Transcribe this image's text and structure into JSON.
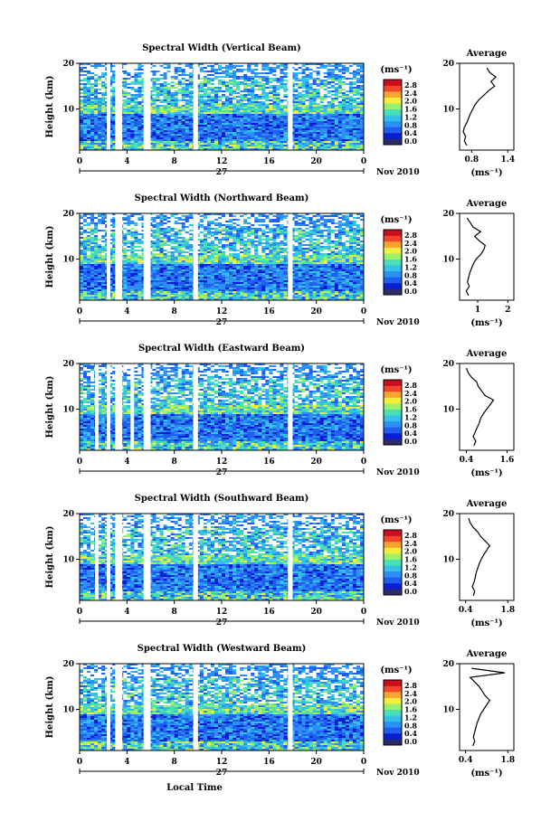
{
  "figure": {
    "date_label": "Nov 2010",
    "xlabel": "Local Time",
    "ylabel": "Height (km)",
    "colorbar_unit": "(ms⁻¹)",
    "colorbar_ticks": [
      "2.8",
      "2.4",
      "2.0",
      "1.6",
      "1.2",
      "0.8",
      "0.4",
      "0.0"
    ],
    "average_title": "Average",
    "average_xlabel": "(ms⁻¹)",
    "day_label": "27",
    "colormap": [
      "#2b2b6b",
      "#0a1fd1",
      "#1f5ff0",
      "#2d8ff5",
      "#34c0e8",
      "#49e0b6",
      "#9ef06a",
      "#f3ee3c",
      "#f9a42e",
      "#f2452a",
      "#c90e22"
    ]
  },
  "chart_data": [
    {
      "type": "heatmap",
      "title": "Spectral Width (Vertical Beam)",
      "x_ticks": [
        "0",
        "4",
        "8",
        "12",
        "16",
        "20",
        "0"
      ],
      "xlim": [
        0,
        24
      ],
      "y_ticks": [
        "20",
        "10"
      ],
      "ylim": [
        1,
        20
      ],
      "color_range": [
        0.0,
        3.0
      ],
      "data_gaps_hours": [
        [
          2.3,
          2.6
        ],
        [
          3.0,
          3.6
        ],
        [
          5.4,
          6.0
        ],
        [
          9.6,
          10.0
        ],
        [
          17.6,
          18.0
        ]
      ],
      "average_profile": {
        "title": "Average",
        "x_ticks": [
          "0.8",
          "1.4"
        ],
        "xlim": [
          0.6,
          1.5
        ],
        "height_km": [
          2,
          3,
          4,
          5,
          6,
          7,
          8,
          9,
          10,
          11,
          12,
          13,
          14,
          15,
          16,
          17,
          18,
          19
        ],
        "value": [
          0.72,
          0.68,
          0.7,
          0.66,
          0.68,
          0.72,
          0.75,
          0.78,
          0.82,
          0.86,
          0.92,
          1.0,
          1.08,
          1.18,
          1.12,
          1.2,
          1.1,
          1.05
        ]
      }
    },
    {
      "type": "heatmap",
      "title": "Spectral Width (Northward Beam)",
      "x_ticks": [
        "0",
        "4",
        "8",
        "12",
        "16",
        "20",
        "0"
      ],
      "xlim": [
        0,
        24
      ],
      "y_ticks": [
        "20",
        "10"
      ],
      "ylim": [
        1,
        20
      ],
      "color_range": [
        0.0,
        3.0
      ],
      "data_gaps_hours": [
        [
          2.3,
          2.6
        ],
        [
          3.0,
          3.6
        ],
        [
          5.4,
          6.0
        ],
        [
          9.6,
          10.0
        ],
        [
          17.6,
          18.0
        ]
      ],
      "average_profile": {
        "title": "Average",
        "x_ticks": [
          "1",
          "2"
        ],
        "xlim": [
          0.4,
          2.2
        ],
        "height_km": [
          2,
          3,
          4,
          5,
          6,
          7,
          8,
          9,
          10,
          11,
          12,
          13,
          14,
          15,
          16,
          17,
          18,
          19
        ],
        "value": [
          0.7,
          0.62,
          0.72,
          0.66,
          0.7,
          0.74,
          0.8,
          0.86,
          0.95,
          1.1,
          1.2,
          1.25,
          1.05,
          0.9,
          1.1,
          0.85,
          0.75,
          0.65
        ]
      }
    },
    {
      "type": "heatmap",
      "title": "Spectral Width (Eastward Beam)",
      "x_ticks": [
        "0",
        "4",
        "8",
        "12",
        "16",
        "20",
        "0"
      ],
      "xlim": [
        0,
        24
      ],
      "y_ticks": [
        "20",
        "10"
      ],
      "ylim": [
        1,
        20
      ],
      "color_range": [
        0.0,
        3.0
      ],
      "data_gaps_hours": [
        [
          1.3,
          1.6
        ],
        [
          2.3,
          2.6
        ],
        [
          3.0,
          3.6
        ],
        [
          4.3,
          4.6
        ],
        [
          5.4,
          6.0
        ],
        [
          9.6,
          10.0
        ],
        [
          17.6,
          18.0
        ]
      ],
      "average_profile": {
        "title": "Average",
        "x_ticks": [
          "0.4",
          "1.6"
        ],
        "xlim": [
          0.2,
          1.8
        ],
        "height_km": [
          2,
          3,
          4,
          5,
          6,
          7,
          8,
          9,
          10,
          11,
          12,
          13,
          14,
          15,
          16,
          17,
          18,
          19
        ],
        "value": [
          0.62,
          0.68,
          0.6,
          0.66,
          0.72,
          0.78,
          0.82,
          0.9,
          1.0,
          1.1,
          1.2,
          0.95,
          0.85,
          0.75,
          0.7,
          0.55,
          0.45,
          0.4
        ]
      }
    },
    {
      "type": "heatmap",
      "title": "Spectral Width (Southward Beam)",
      "x_ticks": [
        "0",
        "4",
        "8",
        "12",
        "16",
        "20",
        "0"
      ],
      "xlim": [
        0,
        24
      ],
      "y_ticks": [
        "20",
        "10"
      ],
      "ylim": [
        1,
        20
      ],
      "color_range": [
        0.0,
        3.0
      ],
      "data_gaps_hours": [
        [
          1.3,
          1.6
        ],
        [
          2.3,
          2.6
        ],
        [
          3.0,
          3.6
        ],
        [
          5.4,
          6.0
        ],
        [
          9.6,
          10.0
        ],
        [
          17.6,
          18.0
        ]
      ],
      "average_profile": {
        "title": "Average",
        "x_ticks": [
          "0.4",
          "1.8"
        ],
        "xlim": [
          0.2,
          2.0
        ],
        "height_km": [
          2,
          3,
          4,
          5,
          6,
          7,
          8,
          9,
          10,
          11,
          12,
          13,
          14,
          15,
          16,
          17,
          18,
          19
        ],
        "value": [
          0.66,
          0.7,
          0.62,
          0.68,
          0.72,
          0.75,
          0.8,
          0.85,
          0.92,
          1.0,
          1.1,
          1.2,
          1.05,
          0.9,
          0.8,
          0.65,
          0.55,
          0.5
        ]
      }
    },
    {
      "type": "heatmap",
      "title": "Spectral Width (Westward Beam)",
      "x_ticks": [
        "0",
        "4",
        "8",
        "12",
        "16",
        "20",
        "0"
      ],
      "xlim": [
        0,
        24
      ],
      "y_ticks": [
        "20",
        "10"
      ],
      "ylim": [
        1,
        20
      ],
      "color_range": [
        0.0,
        3.0
      ],
      "data_gaps_hours": [
        [
          2.3,
          2.6
        ],
        [
          3.0,
          3.6
        ],
        [
          5.4,
          6.0
        ],
        [
          9.6,
          10.0
        ],
        [
          17.6,
          18.0
        ]
      ],
      "average_profile": {
        "title": "Average",
        "x_ticks": [
          "0.4",
          "1.8"
        ],
        "xlim": [
          0.2,
          2.0
        ],
        "height_km": [
          2,
          3,
          4,
          5,
          6,
          7,
          8,
          9,
          10,
          11,
          12,
          13,
          14,
          15,
          16,
          17,
          18,
          19
        ],
        "value": [
          0.64,
          0.7,
          0.66,
          0.7,
          0.74,
          0.78,
          0.84,
          0.9,
          1.0,
          1.1,
          1.2,
          1.05,
          0.95,
          0.85,
          0.7,
          0.55,
          1.7,
          0.6
        ]
      }
    }
  ]
}
